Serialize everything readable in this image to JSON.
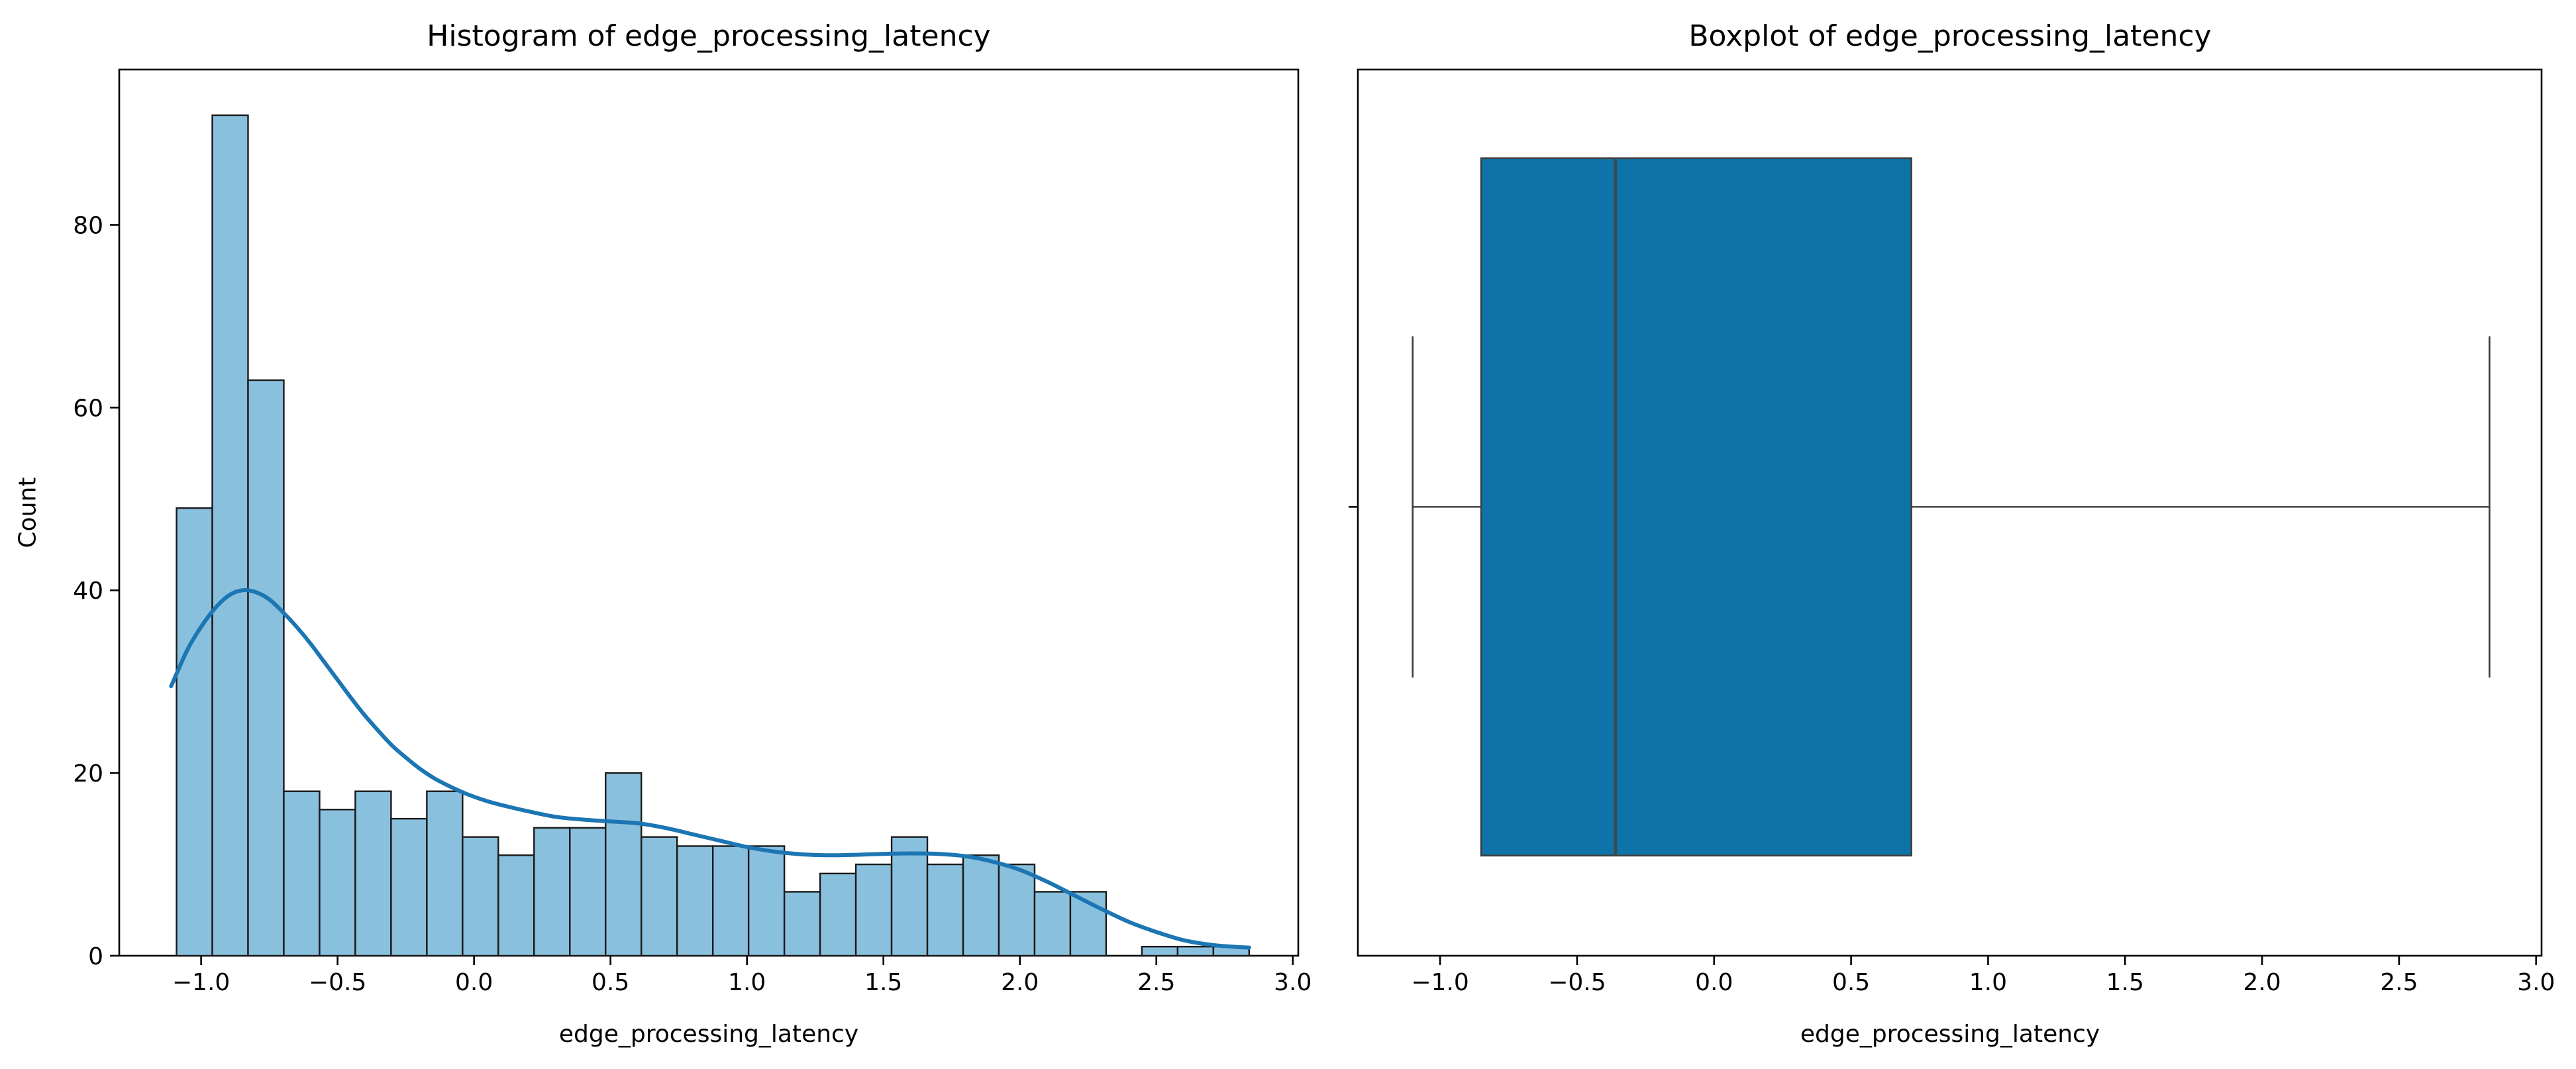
{
  "chart_data": [
    {
      "type": "histogram",
      "title": "Histogram of edge_processing_latency",
      "xlabel": "edge_processing_latency",
      "ylabel": "Count",
      "legend": "none",
      "grid": false,
      "xlim": [
        -1.3,
        3.02
      ],
      "ylim": [
        0,
        97
      ],
      "xticks": [
        -1.0,
        -0.5,
        0.0,
        0.5,
        1.0,
        1.5,
        2.0,
        2.5,
        3.0
      ],
      "yticks": [
        0,
        20,
        40,
        60,
        80
      ],
      "bins": {
        "start": -1.09,
        "width": 0.131,
        "count": 30
      },
      "counts": [
        49,
        92,
        63,
        18,
        16,
        18,
        15,
        18,
        13,
        11,
        14,
        14,
        20,
        13,
        12,
        12,
        12,
        7,
        9,
        10,
        13,
        10,
        11,
        10,
        7,
        7,
        0,
        1,
        1,
        1
      ],
      "kde": {
        "x": [
          -1.11,
          -1.05,
          -1.0,
          -0.95,
          -0.9,
          -0.85,
          -0.8,
          -0.75,
          -0.7,
          -0.65,
          -0.6,
          -0.55,
          -0.5,
          -0.45,
          -0.4,
          -0.35,
          -0.3,
          -0.25,
          -0.2,
          -0.15,
          -0.1,
          -0.05,
          0.0,
          0.05,
          0.1,
          0.2,
          0.3,
          0.4,
          0.5,
          0.6,
          0.7,
          0.8,
          0.9,
          1.0,
          1.1,
          1.2,
          1.3,
          1.4,
          1.5,
          1.6,
          1.7,
          1.8,
          1.9,
          2.0,
          2.1,
          2.2,
          2.3,
          2.4,
          2.5,
          2.6,
          2.7,
          2.8,
          2.84
        ],
        "y": [
          29.5,
          33.5,
          36.0,
          38.0,
          39.4,
          40.0,
          39.8,
          39.0,
          37.6,
          36.0,
          34.2,
          32.2,
          30.2,
          28.2,
          26.3,
          24.6,
          23.0,
          21.7,
          20.5,
          19.5,
          18.7,
          18.0,
          17.4,
          16.9,
          16.5,
          15.8,
          15.2,
          14.9,
          14.7,
          14.5,
          14.0,
          13.3,
          12.6,
          11.9,
          11.4,
          11.1,
          11.0,
          11.05,
          11.15,
          11.2,
          11.15,
          10.9,
          10.3,
          9.4,
          8.1,
          6.6,
          5.1,
          3.7,
          2.6,
          1.7,
          1.2,
          0.95,
          0.9
        ]
      },
      "colors": {
        "bar_fill": "#89c0dd",
        "bar_edge": "#1a1a1a",
        "kde_line": "#1b76b3",
        "spine": "#000000",
        "text": "#000000"
      }
    },
    {
      "type": "boxplot",
      "title": "Boxplot of edge_processing_latency",
      "xlabel": "edge_processing_latency",
      "orientation": "horizontal",
      "grid": false,
      "xlim": [
        -1.3,
        3.02
      ],
      "xticks": [
        -1.0,
        -0.5,
        0.0,
        0.5,
        1.0,
        1.5,
        2.0,
        2.5,
        3.0
      ],
      "stats": {
        "whisker_low": -1.1,
        "q1": -0.85,
        "median": -0.36,
        "q3": 0.72,
        "whisker_high": 2.83,
        "outliers": []
      },
      "colors": {
        "box_fill": "#0e73a8",
        "box_edge": "#3d3d3d",
        "median_line": "#3a4a52",
        "whisker": "#3d3d3d",
        "spine": "#000000",
        "text": "#000000"
      }
    }
  ]
}
